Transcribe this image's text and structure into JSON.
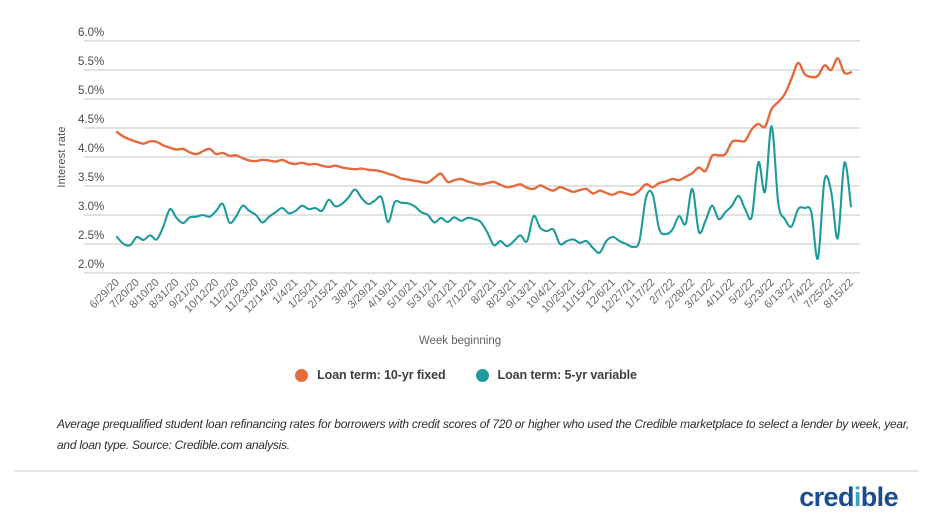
{
  "chart": {
    "y_axis_title": "Interest rate",
    "x_axis_title": "Week beginning"
  },
  "chart_data": {
    "type": "line",
    "title": "",
    "xlabel": "Week beginning",
    "ylabel": "Interest rate",
    "x_frequency": "weekly",
    "x_ticks_every_n_points": 3,
    "x_tick_labels": [
      "6/29/20",
      "7/20/20",
      "8/10/20",
      "8/31/20",
      "9/21/20",
      "10/12/20",
      "11/2/20",
      "11/23/20",
      "12/14/20",
      "1/4/21",
      "1/25/21",
      "2/15/21",
      "3/8/21",
      "3/29/21",
      "4/19/21",
      "5/10/21",
      "5/31/21",
      "6/21/21",
      "7/12/21",
      "8/2/21",
      "8/23/21",
      "9/13/21",
      "10/4/21",
      "10/25/21",
      "11/15/21",
      "12/6/21",
      "12/27/21",
      "1/17/22",
      "2/7/22",
      "2/28/22",
      "3/21/22",
      "4/11/22",
      "5/2/22",
      "5/23/22",
      "6/13/22",
      "7/4/22",
      "7/25/22",
      "8/15/22"
    ],
    "ylim": [
      2.0,
      6.0
    ],
    "y_ticks": [
      6.0,
      5.5,
      5.0,
      4.5,
      4.0,
      3.5,
      3.0,
      2.5,
      2.0
    ],
    "y_tick_labels": [
      "6.0%",
      "5.5%",
      "5.0%",
      "4.5%",
      "4.0%",
      "3.5%",
      "3.0%",
      "2.5%",
      "2.0%"
    ],
    "grid": "horizontal",
    "legend_position": "bottom",
    "series": [
      {
        "name": "Loan term: 10-yr fixed",
        "color": "#e56a3d",
        "values": [
          4.43,
          4.35,
          4.3,
          4.26,
          4.23,
          4.27,
          4.26,
          4.2,
          4.16,
          4.13,
          4.14,
          4.08,
          4.05,
          4.1,
          4.14,
          4.05,
          4.07,
          4.02,
          4.03,
          3.98,
          3.94,
          3.93,
          3.95,
          3.94,
          3.92,
          3.95,
          3.9,
          3.88,
          3.9,
          3.87,
          3.88,
          3.85,
          3.83,
          3.85,
          3.82,
          3.8,
          3.79,
          3.8,
          3.78,
          3.77,
          3.75,
          3.71,
          3.68,
          3.63,
          3.61,
          3.59,
          3.57,
          3.56,
          3.64,
          3.71,
          3.57,
          3.6,
          3.62,
          3.58,
          3.55,
          3.53,
          3.55,
          3.57,
          3.52,
          3.48,
          3.5,
          3.53,
          3.47,
          3.45,
          3.51,
          3.46,
          3.42,
          3.48,
          3.44,
          3.4,
          3.43,
          3.45,
          3.37,
          3.42,
          3.38,
          3.35,
          3.4,
          3.37,
          3.35,
          3.42,
          3.53,
          3.48,
          3.55,
          3.58,
          3.62,
          3.6,
          3.66,
          3.72,
          3.82,
          3.76,
          4.02,
          4.03,
          4.05,
          4.26,
          4.28,
          4.28,
          4.48,
          4.57,
          4.52,
          4.83,
          4.95,
          5.09,
          5.35,
          5.62,
          5.43,
          5.38,
          5.4,
          5.58,
          5.5,
          5.7,
          5.45,
          5.46
        ]
      },
      {
        "name": "Loan term: 5-yr variable",
        "color": "#1f9a9c",
        "values": [
          2.62,
          2.5,
          2.48,
          2.62,
          2.57,
          2.65,
          2.58,
          2.8,
          3.1,
          2.95,
          2.86,
          2.96,
          2.97,
          3.0,
          2.97,
          3.07,
          3.19,
          2.87,
          2.97,
          3.16,
          3.07,
          3.0,
          2.87,
          2.97,
          3.05,
          3.12,
          3.03,
          3.07,
          3.16,
          3.1,
          3.12,
          3.07,
          3.26,
          3.15,
          3.19,
          3.3,
          3.44,
          3.29,
          3.19,
          3.25,
          3.3,
          2.88,
          3.22,
          3.21,
          3.2,
          3.15,
          3.05,
          3.0,
          2.87,
          2.95,
          2.88,
          2.96,
          2.9,
          2.95,
          2.93,
          2.88,
          2.7,
          2.48,
          2.55,
          2.46,
          2.55,
          2.65,
          2.55,
          2.98,
          2.78,
          2.72,
          2.75,
          2.5,
          2.55,
          2.58,
          2.52,
          2.55,
          2.43,
          2.35,
          2.55,
          2.62,
          2.55,
          2.5,
          2.45,
          2.55,
          3.3,
          3.36,
          2.76,
          2.67,
          2.75,
          2.98,
          2.85,
          3.45,
          2.71,
          2.9,
          3.16,
          2.93,
          3.05,
          3.16,
          3.33,
          3.1,
          2.97,
          3.91,
          3.4,
          4.53,
          3.2,
          2.93,
          2.8,
          3.1,
          3.12,
          3.05,
          2.25,
          3.6,
          3.4,
          2.6,
          3.9,
          3.15
        ]
      }
    ]
  },
  "footnote": {
    "line1": "Average prequalified student loan refinancing rates for borrowers with credit scores of 720 or higher who used the Credible marketplace to select a lender by week, year,",
    "line2": "and loan type. Source: Credible.com analysis."
  },
  "branding": {
    "logo_prefix": "cred",
    "logo_i": "i",
    "logo_suffix": "ble",
    "navy": "#1b4d8e",
    "i_color": "#3ba4bd"
  },
  "colors": {
    "gridline": "#c6c6c6",
    "x_tick_text": "#666666",
    "y_tick_text": "#4a4a4a"
  }
}
